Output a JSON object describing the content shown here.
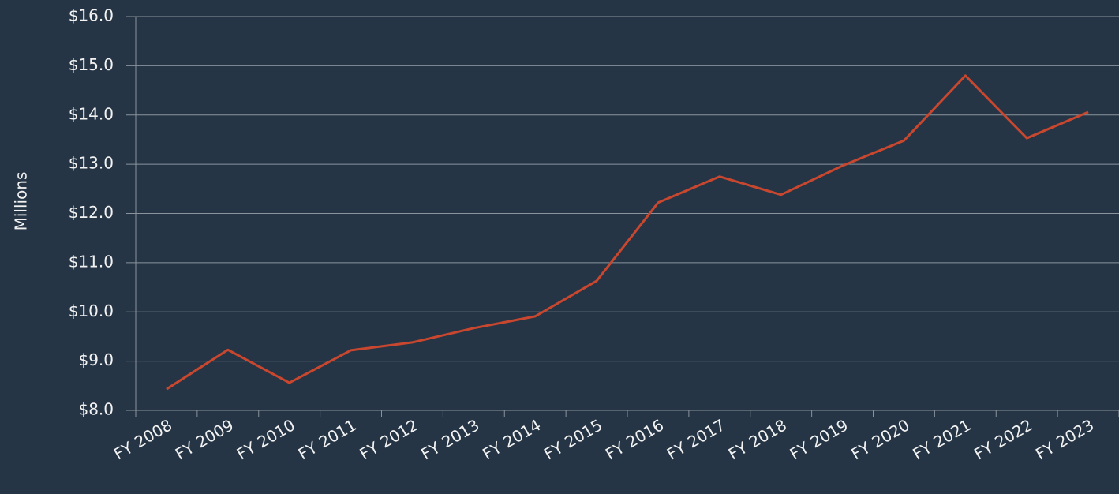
{
  "chart_data": {
    "type": "line",
    "y_label": "Millions",
    "categories": [
      "FY 2008",
      "FY 2009",
      "FY 2010",
      "FY 2011",
      "FY 2012",
      "FY 2013",
      "FY 2014",
      "FY 2015",
      "FY 2016",
      "FY 2017",
      "FY 2018",
      "FY 2019",
      "FY 2020",
      "FY 2021",
      "FY 2022",
      "FY 2023"
    ],
    "series": [
      {
        "color": "#c9472f",
        "values": [
          8.43,
          9.23,
          8.56,
          9.22,
          9.38,
          9.67,
          9.91,
          10.63,
          12.22,
          12.75,
          12.38,
          12.97,
          13.48,
          14.8,
          13.53,
          14.06
        ]
      }
    ],
    "ylim": [
      8,
      16
    ],
    "yticks": [
      {
        "value": 8,
        "label": "$8.0"
      },
      {
        "value": 9,
        "label": "$9.0"
      },
      {
        "value": 10,
        "label": "$10.0"
      },
      {
        "value": 11,
        "label": "$11.0"
      },
      {
        "value": 12,
        "label": "$12.0"
      },
      {
        "value": 13,
        "label": "$13.0"
      },
      {
        "value": 14,
        "label": "$14.0"
      },
      {
        "value": 15,
        "label": "$15.0"
      },
      {
        "value": 16,
        "label": "$16.0"
      }
    ],
    "grid": true
  }
}
